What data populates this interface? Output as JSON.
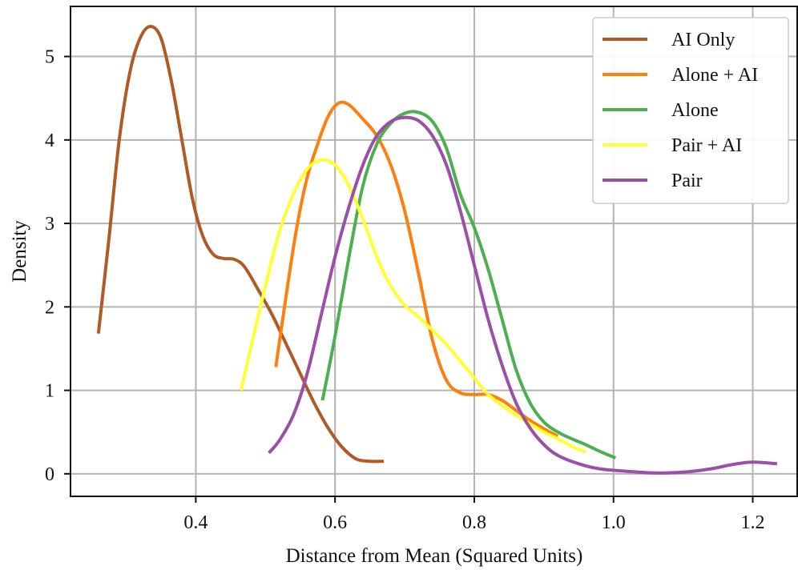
{
  "chart_data": {
    "type": "line",
    "xlabel": "Distance from Mean (Squared Units)",
    "ylabel": "Density",
    "xlim": [
      0.22,
      1.265
    ],
    "ylim": [
      -0.27,
      5.6
    ],
    "x_ticks": [
      0.4,
      0.6,
      0.8,
      1.0,
      1.2
    ],
    "x_tick_labels": [
      "0.4",
      "0.6",
      "0.8",
      "1.0",
      "1.2"
    ],
    "y_ticks": [
      0,
      1,
      2,
      3,
      4,
      5
    ],
    "y_tick_labels": [
      "0",
      "1",
      "2",
      "3",
      "4",
      "5"
    ],
    "grid": true,
    "legend_position": "top-right",
    "series": [
      {
        "name": "AI Only",
        "color": "#b05a26",
        "points": [
          [
            0.26,
            1.68
          ],
          [
            0.275,
            2.8
          ],
          [
            0.29,
            4.0
          ],
          [
            0.305,
            4.8
          ],
          [
            0.32,
            5.22
          ],
          [
            0.335,
            5.36
          ],
          [
            0.35,
            5.22
          ],
          [
            0.365,
            4.7
          ],
          [
            0.38,
            4.0
          ],
          [
            0.395,
            3.3
          ],
          [
            0.41,
            2.85
          ],
          [
            0.425,
            2.63
          ],
          [
            0.44,
            2.58
          ],
          [
            0.455,
            2.57
          ],
          [
            0.47,
            2.48
          ],
          [
            0.49,
            2.2
          ],
          [
            0.51,
            1.9
          ],
          [
            0.53,
            1.55
          ],
          [
            0.55,
            1.2
          ],
          [
            0.57,
            0.85
          ],
          [
            0.59,
            0.55
          ],
          [
            0.61,
            0.32
          ],
          [
            0.63,
            0.18
          ],
          [
            0.65,
            0.15
          ],
          [
            0.67,
            0.15
          ]
        ]
      },
      {
        "name": "Alone + AI",
        "color": "#ff7f0e",
        "points": [
          [
            0.515,
            1.28
          ],
          [
            0.53,
            2.15
          ],
          [
            0.545,
            2.95
          ],
          [
            0.56,
            3.55
          ],
          [
            0.575,
            3.95
          ],
          [
            0.59,
            4.28
          ],
          [
            0.605,
            4.44
          ],
          [
            0.62,
            4.42
          ],
          [
            0.64,
            4.25
          ],
          [
            0.66,
            4.05
          ],
          [
            0.68,
            3.7
          ],
          [
            0.7,
            3.15
          ],
          [
            0.72,
            2.4
          ],
          [
            0.74,
            1.6
          ],
          [
            0.76,
            1.12
          ],
          [
            0.78,
            0.97
          ],
          [
            0.8,
            0.95
          ],
          [
            0.82,
            0.95
          ],
          [
            0.84,
            0.88
          ],
          [
            0.86,
            0.76
          ],
          [
            0.88,
            0.64
          ],
          [
            0.9,
            0.54
          ],
          [
            0.92,
            0.45
          ]
        ]
      },
      {
        "name": "Alone",
        "color": "#4caf50",
        "points": [
          [
            0.582,
            0.88
          ],
          [
            0.6,
            1.65
          ],
          [
            0.62,
            2.6
          ],
          [
            0.64,
            3.45
          ],
          [
            0.66,
            3.95
          ],
          [
            0.68,
            4.2
          ],
          [
            0.7,
            4.32
          ],
          [
            0.72,
            4.33
          ],
          [
            0.74,
            4.22
          ],
          [
            0.76,
            3.9
          ],
          [
            0.78,
            3.35
          ],
          [
            0.8,
            2.95
          ],
          [
            0.82,
            2.45
          ],
          [
            0.84,
            1.85
          ],
          [
            0.86,
            1.25
          ],
          [
            0.88,
            0.85
          ],
          [
            0.9,
            0.62
          ],
          [
            0.92,
            0.5
          ],
          [
            0.94,
            0.42
          ],
          [
            0.96,
            0.35
          ],
          [
            0.98,
            0.27
          ],
          [
            1.003,
            0.19
          ]
        ]
      },
      {
        "name": "Pair + AI",
        "color": "#ffff33",
        "points": [
          [
            0.465,
            1.0
          ],
          [
            0.48,
            1.55
          ],
          [
            0.5,
            2.25
          ],
          [
            0.52,
            2.9
          ],
          [
            0.54,
            3.35
          ],
          [
            0.56,
            3.65
          ],
          [
            0.58,
            3.76
          ],
          [
            0.6,
            3.7
          ],
          [
            0.62,
            3.45
          ],
          [
            0.64,
            3.05
          ],
          [
            0.66,
            2.6
          ],
          [
            0.68,
            2.25
          ],
          [
            0.7,
            2.02
          ],
          [
            0.72,
            1.88
          ],
          [
            0.74,
            1.72
          ],
          [
            0.76,
            1.55
          ],
          [
            0.78,
            1.35
          ],
          [
            0.8,
            1.15
          ],
          [
            0.82,
            0.95
          ],
          [
            0.84,
            0.82
          ],
          [
            0.86,
            0.7
          ],
          [
            0.88,
            0.6
          ],
          [
            0.9,
            0.5
          ],
          [
            0.92,
            0.42
          ],
          [
            0.94,
            0.33
          ],
          [
            0.96,
            0.26
          ]
        ]
      },
      {
        "name": "Pair",
        "color": "#9b4fa9",
        "points": [
          [
            0.505,
            0.25
          ],
          [
            0.52,
            0.4
          ],
          [
            0.54,
            0.7
          ],
          [
            0.56,
            1.2
          ],
          [
            0.58,
            1.9
          ],
          [
            0.6,
            2.6
          ],
          [
            0.62,
            3.2
          ],
          [
            0.64,
            3.7
          ],
          [
            0.66,
            4.05
          ],
          [
            0.68,
            4.22
          ],
          [
            0.7,
            4.27
          ],
          [
            0.72,
            4.23
          ],
          [
            0.74,
            4.05
          ],
          [
            0.76,
            3.7
          ],
          [
            0.78,
            3.15
          ],
          [
            0.8,
            2.5
          ],
          [
            0.82,
            1.85
          ],
          [
            0.84,
            1.3
          ],
          [
            0.86,
            0.85
          ],
          [
            0.88,
            0.55
          ],
          [
            0.9,
            0.35
          ],
          [
            0.92,
            0.22
          ],
          [
            0.95,
            0.12
          ],
          [
            0.98,
            0.06
          ],
          [
            1.02,
            0.03
          ],
          [
            1.06,
            0.01
          ],
          [
            1.1,
            0.02
          ],
          [
            1.14,
            0.06
          ],
          [
            1.17,
            0.11
          ],
          [
            1.2,
            0.14
          ],
          [
            1.235,
            0.12
          ]
        ]
      }
    ]
  }
}
